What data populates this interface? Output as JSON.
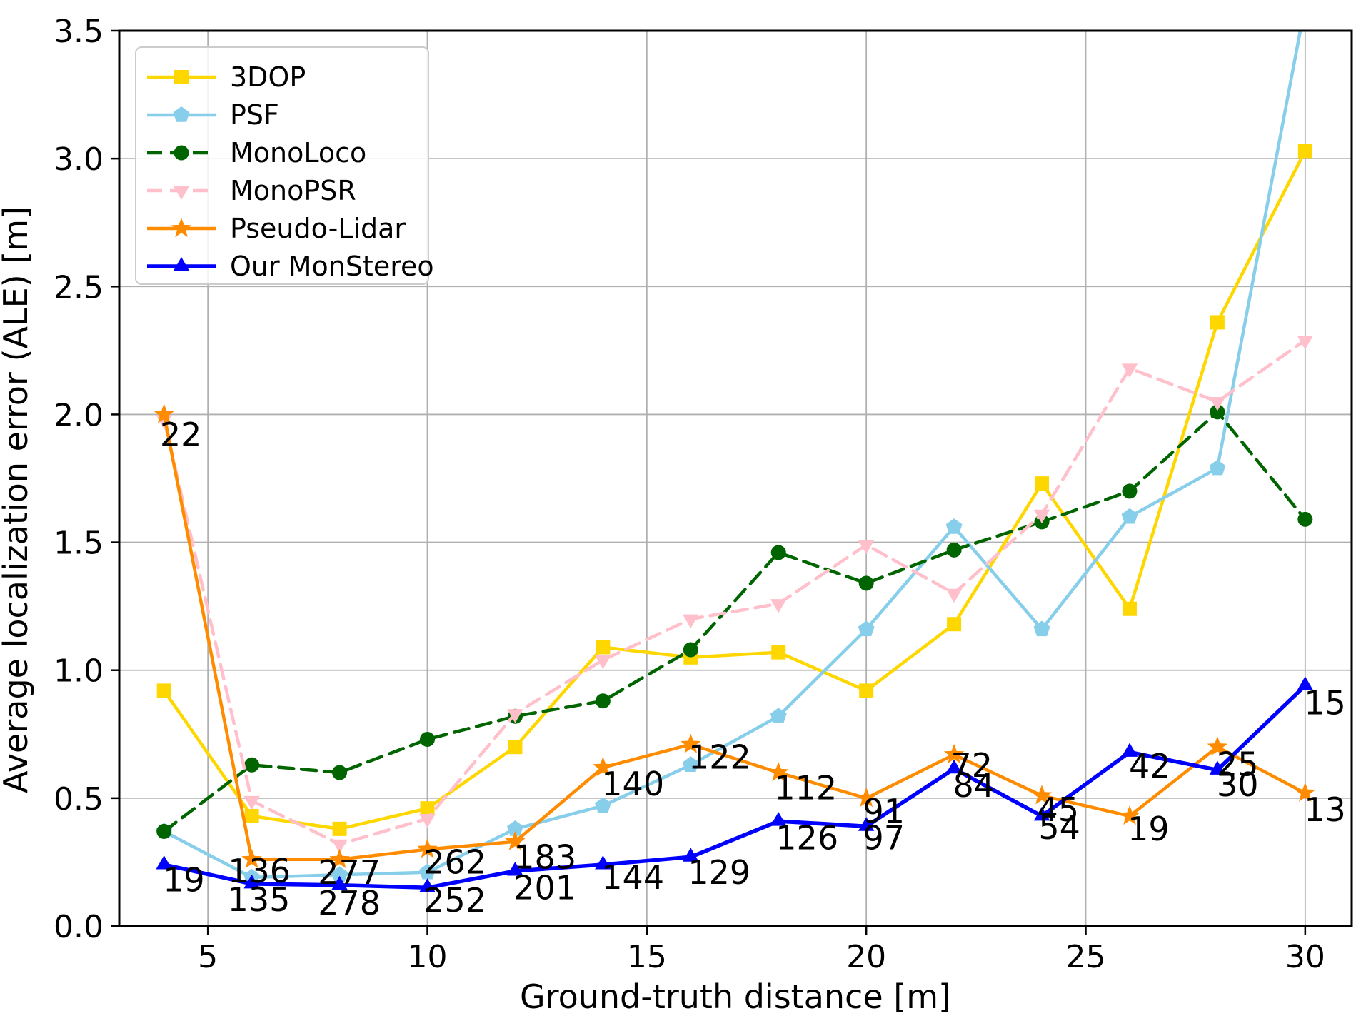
{
  "figure": {
    "xlabel": "Ground-truth distance [m]",
    "ylabel": "Average localization error (ALE) [m]",
    "x_tick_labels": [
      "5",
      "10",
      "15",
      "20",
      "25",
      "30"
    ],
    "y_tick_labels": [
      "0.0",
      "0.5",
      "1.0",
      "1.5",
      "2.0",
      "2.5",
      "3.0",
      "3.5"
    ],
    "grid_color": "#b0b0b0",
    "spine_color": "#000000",
    "legend_border_color": "#cccccc",
    "annotation_color": "#000000"
  },
  "chart_data": {
    "type": "line",
    "title": "",
    "xlabel": "Ground-truth distance [m]",
    "ylabel": "Average localization error (ALE) [m]",
    "xlim": [
      2.98,
      31.06
    ],
    "ylim": [
      0,
      3.5
    ],
    "x_ticks": [
      5,
      10,
      15,
      20,
      25,
      30
    ],
    "y_ticks": [
      0.0,
      0.5,
      1.0,
      1.5,
      2.0,
      2.5,
      3.0,
      3.5
    ],
    "grid": true,
    "legend_position": "upper left",
    "x": [
      4,
      6,
      8,
      10,
      12,
      14,
      16,
      18,
      20,
      22,
      24,
      26,
      28,
      30
    ],
    "series": [
      {
        "name": "3DOP",
        "color": "#FFD700",
        "marker": "square",
        "dash": "solid",
        "lw": 4.5,
        "values": [
          0.92,
          0.43,
          0.38,
          0.46,
          0.7,
          1.09,
          1.05,
          1.07,
          0.92,
          1.18,
          1.73,
          1.24,
          2.36,
          3.03
        ]
      },
      {
        "name": "PSF",
        "color": "#87CEEB",
        "marker": "pentagon",
        "dash": "solid",
        "lw": 4.5,
        "values": [
          0.37,
          0.19,
          0.2,
          0.21,
          0.38,
          0.47,
          0.63,
          0.82,
          1.16,
          1.56,
          1.16,
          1.6,
          1.79,
          3.6
        ]
      },
      {
        "name": "MonoLoco",
        "color": "#006400",
        "marker": "circle",
        "dash": "dashed",
        "lw": 4.5,
        "values": [
          0.37,
          0.63,
          0.6,
          0.73,
          0.82,
          0.88,
          1.08,
          1.46,
          1.34,
          1.47,
          1.58,
          1.7,
          2.01,
          1.59
        ]
      },
      {
        "name": "MonoPSR",
        "color": "#FFC0CB",
        "marker": "triangle-down",
        "dash": "dashed",
        "lw": 4.5,
        "values": [
          1.98,
          0.49,
          0.32,
          0.42,
          0.83,
          1.04,
          1.2,
          1.26,
          1.49,
          1.3,
          1.61,
          2.18,
          2.05,
          2.29
        ]
      },
      {
        "name": "Pseudo-Lidar",
        "color": "#FF8C00",
        "marker": "star",
        "dash": "solid",
        "lw": 4.5,
        "values": [
          2.0,
          0.26,
          0.26,
          0.3,
          0.33,
          0.62,
          0.71,
          0.6,
          0.5,
          0.67,
          0.51,
          0.43,
          0.7,
          0.52
        ]
      },
      {
        "name": "Our MonStereo",
        "color": "#0000FF",
        "marker": "triangle-up",
        "dash": "solid",
        "lw": 5.5,
        "values": [
          0.24,
          0.165,
          0.16,
          0.15,
          0.215,
          0.24,
          0.27,
          0.41,
          0.39,
          0.615,
          0.43,
          0.68,
          0.61,
          0.94
        ]
      }
    ],
    "annotations": [
      {
        "text": "22",
        "x": 4.38,
        "y": 1.92
      },
      {
        "text": "19",
        "x": 4.45,
        "y": 0.18
      },
      {
        "text": "136",
        "x": 6.17,
        "y": 0.215
      },
      {
        "text": "135",
        "x": 6.16,
        "y": 0.103
      },
      {
        "text": "277",
        "x": 8.22,
        "y": 0.21
      },
      {
        "text": "278",
        "x": 8.22,
        "y": 0.09
      },
      {
        "text": "262",
        "x": 10.63,
        "y": 0.25
      },
      {
        "text": "252",
        "x": 10.63,
        "y": 0.1
      },
      {
        "text": "183",
        "x": 12.68,
        "y": 0.27
      },
      {
        "text": "201",
        "x": 12.68,
        "y": 0.15
      },
      {
        "text": "140",
        "x": 14.68,
        "y": 0.555
      },
      {
        "text": "144",
        "x": 14.68,
        "y": 0.19
      },
      {
        "text": "122",
        "x": 16.66,
        "y": 0.66
      },
      {
        "text": "129",
        "x": 16.65,
        "y": 0.21
      },
      {
        "text": "112",
        "x": 18.62,
        "y": 0.54
      },
      {
        "text": "126",
        "x": 18.65,
        "y": 0.345
      },
      {
        "text": "91",
        "x": 20.4,
        "y": 0.45
      },
      {
        "text": "97",
        "x": 20.4,
        "y": 0.345
      },
      {
        "text": "72",
        "x": 22.4,
        "y": 0.628
      },
      {
        "text": "84",
        "x": 22.45,
        "y": 0.55
      },
      {
        "text": "45",
        "x": 24.37,
        "y": 0.455
      },
      {
        "text": "54",
        "x": 24.4,
        "y": 0.385
      },
      {
        "text": "42",
        "x": 26.46,
        "y": 0.625
      },
      {
        "text": "19",
        "x": 26.43,
        "y": 0.38
      },
      {
        "text": "25",
        "x": 28.46,
        "y": 0.632
      },
      {
        "text": "30",
        "x": 28.46,
        "y": 0.552
      },
      {
        "text": "15",
        "x": 30.45,
        "y": 0.872
      },
      {
        "text": "13",
        "x": 30.45,
        "y": 0.455
      }
    ]
  }
}
